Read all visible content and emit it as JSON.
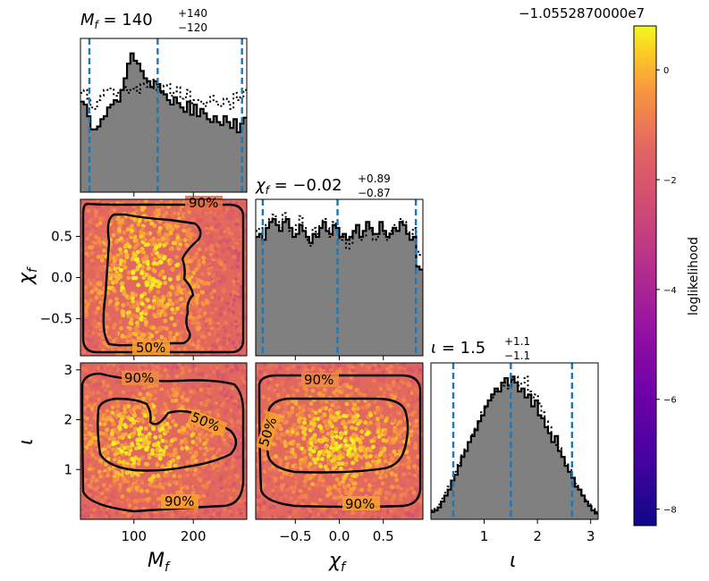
{
  "chart_data": {
    "type": "corner",
    "parameters": [
      {
        "key": "mf",
        "label": "M",
        "sub": "f",
        "range": [
          10,
          290
        ],
        "ticks": [
          100,
          200
        ],
        "tick_labels": [
          "100",
          "200"
        ],
        "unit": ""
      },
      {
        "key": "chi",
        "label": "χ",
        "sub": "f",
        "range": [
          -0.95,
          0.95
        ],
        "ticks": [
          -0.5,
          0.0,
          0.5
        ],
        "tick_labels": [
          "−0.5",
          "0.0",
          "0.5"
        ]
      },
      {
        "key": "iota",
        "label": "ι",
        "sub": "",
        "range": [
          0.0,
          3.14
        ],
        "ticks": [
          1,
          2,
          3
        ],
        "tick_labels": [
          "1",
          "2",
          "3"
        ]
      }
    ],
    "titles": {
      "mf": {
        "prefix": "M",
        "sub": "f",
        "value": " = 140",
        "up": "+140",
        "down": "−120"
      },
      "chi": {
        "prefix": "χ",
        "sub": "f",
        "value": " = −0.02",
        "up": "+0.89",
        "down": "−0.87"
      },
      "iota": {
        "prefix": "ι",
        "sub": "",
        "value": " = 1.5",
        "up": "+1.1",
        "down": "−1.1"
      }
    },
    "quantiles": {
      "mf": [
        25,
        140,
        282
      ],
      "chi": [
        -0.87,
        -0.02,
        0.87
      ],
      "iota": [
        0.42,
        1.5,
        2.65
      ]
    },
    "histograms": {
      "mf": {
        "bins": [
          10,
          290
        ],
        "solid": [
          0.62,
          0.6,
          0.52,
          0.43,
          0.43,
          0.45,
          0.5,
          0.52,
          0.58,
          0.6,
          0.63,
          0.62,
          0.7,
          0.78,
          0.88,
          0.95,
          0.9,
          0.88,
          0.83,
          0.78,
          0.76,
          0.72,
          0.76,
          0.74,
          0.69,
          0.67,
          0.63,
          0.6,
          0.65,
          0.61,
          0.58,
          0.55,
          0.62,
          0.53,
          0.6,
          0.52,
          0.57,
          0.54,
          0.5,
          0.48,
          0.52,
          0.48,
          0.46,
          0.52,
          0.48,
          0.44,
          0.5,
          0.41,
          0.47,
          0.51
        ],
        "dotted": [
          0.68,
          0.7,
          0.64,
          0.58,
          0.57,
          0.63,
          0.66,
          0.7,
          0.7,
          0.71,
          0.66,
          0.68,
          0.7,
          0.72,
          0.68,
          0.7,
          0.72,
          0.68,
          0.74,
          0.75,
          0.72,
          0.77,
          0.7,
          0.72,
          0.68,
          0.73,
          0.74,
          0.66,
          0.69,
          0.72,
          0.64,
          0.65,
          0.7,
          0.61,
          0.63,
          0.63,
          0.62,
          0.59,
          0.62,
          0.66,
          0.62,
          0.6,
          0.59,
          0.64,
          0.62,
          0.57,
          0.68,
          0.63,
          0.65,
          0.7
        ]
      },
      "chi": {
        "bins": [
          -0.95,
          0.95
        ],
        "solid": [
          0.8,
          0.82,
          0.78,
          0.86,
          0.9,
          0.92,
          0.88,
          0.84,
          0.9,
          0.92,
          0.86,
          0.8,
          0.82,
          0.88,
          0.84,
          0.8,
          0.76,
          0.82,
          0.8,
          0.86,
          0.9,
          0.84,
          0.82,
          0.88,
          0.86,
          0.8,
          0.82,
          0.78,
          0.8,
          0.84,
          0.88,
          0.8,
          0.84,
          0.9,
          0.86,
          0.82,
          0.82,
          0.9,
          0.84,
          0.8,
          0.82,
          0.86,
          0.84,
          0.9,
          0.88,
          0.82,
          0.78,
          0.8,
          0.6,
          0.58
        ],
        "dotted": [
          0.84,
          0.86,
          0.82,
          0.88,
          0.92,
          0.95,
          0.9,
          0.86,
          0.96,
          0.9,
          0.84,
          0.82,
          0.88,
          0.94,
          0.86,
          0.78,
          0.74,
          0.86,
          0.82,
          0.88,
          0.92,
          0.86,
          0.8,
          0.9,
          0.84,
          0.78,
          0.8,
          0.72,
          0.76,
          0.82,
          0.86,
          0.78,
          0.8,
          0.88,
          0.84,
          0.78,
          0.8,
          0.88,
          0.82,
          0.78,
          0.84,
          0.88,
          0.86,
          0.92,
          0.9,
          0.84,
          0.82,
          0.86,
          0.7,
          0.68
        ]
      },
      "iota": {
        "bins": [
          0.0,
          3.14
        ],
        "solid": [
          0.05,
          0.06,
          0.08,
          0.12,
          0.16,
          0.2,
          0.26,
          0.3,
          0.36,
          0.42,
          0.46,
          0.52,
          0.56,
          0.6,
          0.66,
          0.7,
          0.76,
          0.8,
          0.84,
          0.88,
          0.86,
          0.92,
          0.95,
          0.9,
          0.96,
          0.92,
          0.86,
          0.88,
          0.82,
          0.84,
          0.76,
          0.8,
          0.7,
          0.68,
          0.62,
          0.58,
          0.52,
          0.56,
          0.46,
          0.42,
          0.36,
          0.32,
          0.28,
          0.22,
          0.2,
          0.16,
          0.12,
          0.09,
          0.06,
          0.04
        ],
        "dotted": [
          0.06,
          0.07,
          0.1,
          0.14,
          0.18,
          0.22,
          0.27,
          0.32,
          0.38,
          0.43,
          0.47,
          0.52,
          0.57,
          0.61,
          0.65,
          0.72,
          0.75,
          0.8,
          0.82,
          0.86,
          0.88,
          0.9,
          0.92,
          0.88,
          0.94,
          0.96,
          0.9,
          0.92,
          0.96,
          0.86,
          0.82,
          0.84,
          0.78,
          0.72,
          0.66,
          0.62,
          0.56,
          0.5,
          0.48,
          0.42,
          0.38,
          0.34,
          0.28,
          0.24,
          0.2,
          0.16,
          0.13,
          0.1,
          0.07,
          0.05
        ]
      }
    },
    "contour_labels": {
      "mf_chi": [
        "90%",
        "50%"
      ],
      "mf_iota": [
        "90%",
        "50%",
        "90%"
      ],
      "chi_iota": [
        "90%",
        "50%",
        "90%"
      ]
    },
    "colorbar": {
      "label": "loglikelihood",
      "offset": "−1.0552870000e7",
      "range": [
        -8.3,
        0.8
      ],
      "ticks": [
        0,
        -2,
        -4,
        -6,
        -8
      ],
      "tick_labels": [
        "0",
        "−2",
        "−4",
        "−6",
        "−8"
      ],
      "colormap": "plasma"
    },
    "colors": {
      "hist_fill": "#808080",
      "quantile_line": "#1f77b4",
      "contour": "#000000"
    },
    "grid": false
  }
}
